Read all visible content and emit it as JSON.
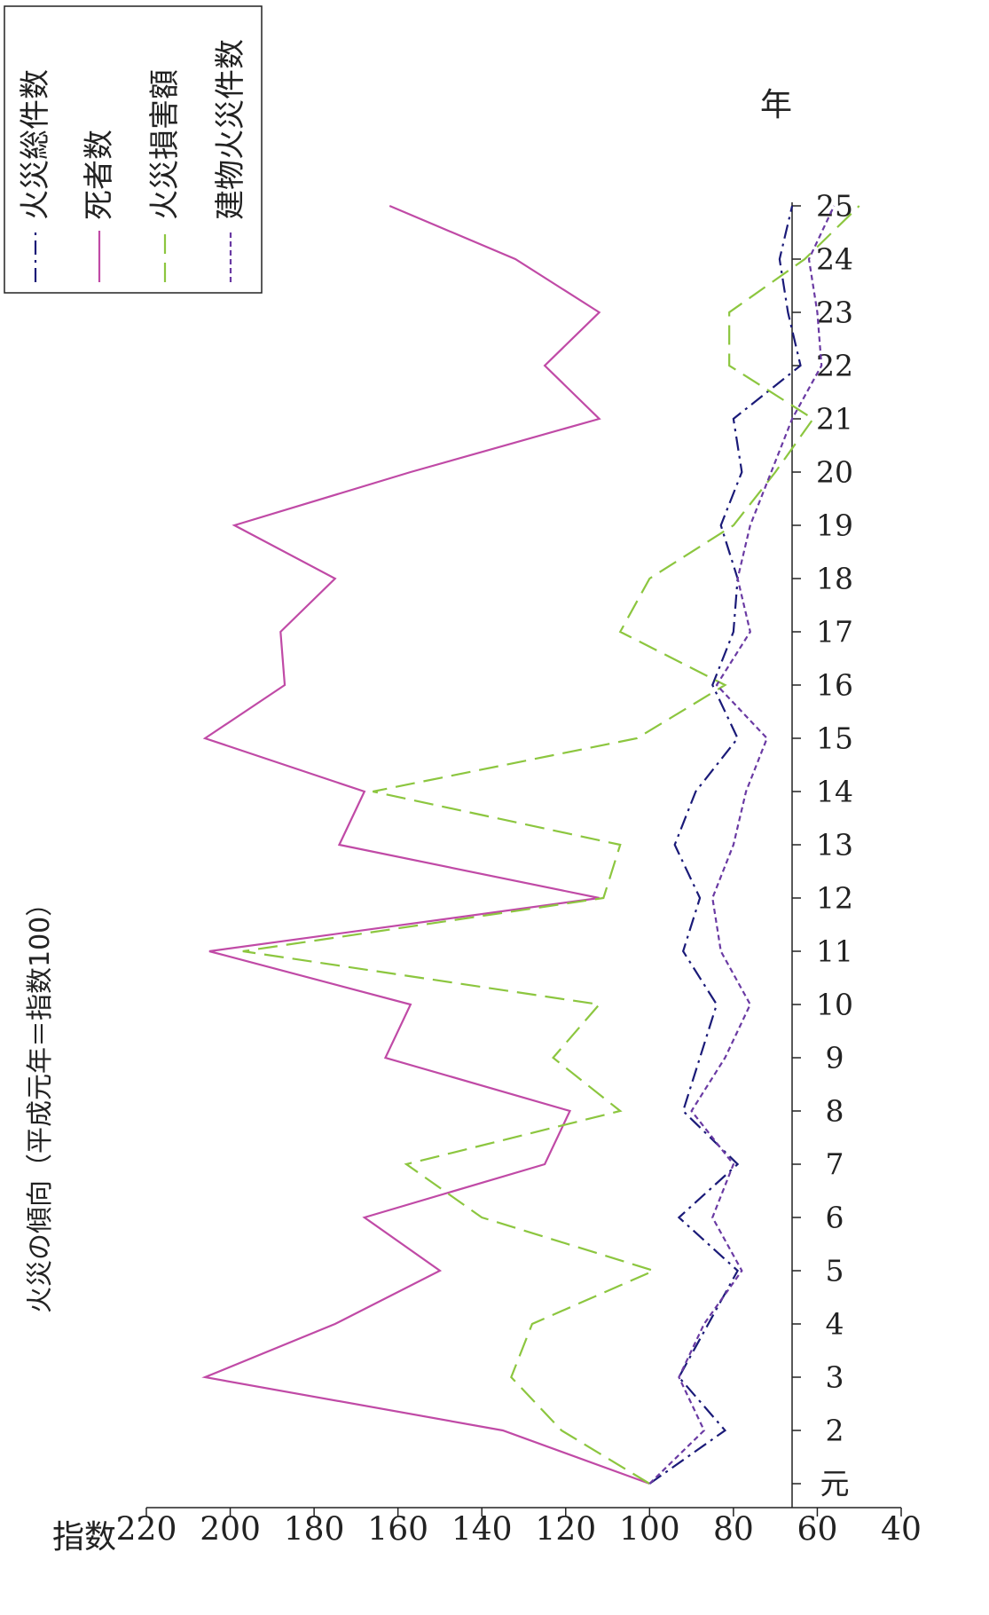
{
  "chart_data": {
    "type": "line",
    "title": "火災の傾向（平成元年＝指数100）",
    "ylabel": "指数",
    "xlabel": "年",
    "ylim": [
      40,
      220
    ],
    "yticks": [
      "40",
      "60",
      "80",
      "100",
      "120",
      "140",
      "160",
      "180",
      "200",
      "220"
    ],
    "categories": [
      "元",
      "2",
      "3",
      "4",
      "5",
      "6",
      "7",
      "8",
      "9",
      "10",
      "11",
      "12",
      "13",
      "14",
      "15",
      "16",
      "17",
      "18",
      "19",
      "20",
      "21",
      "22",
      "23",
      "24",
      "25"
    ],
    "legend_position": "top-right",
    "series": [
      {
        "name": "火災総件数",
        "style": "dashdot",
        "color": "#1a1a78",
        "values": [
          100,
          82,
          93,
          86,
          79,
          93,
          79,
          92,
          88,
          84,
          92,
          88,
          94,
          89,
          79,
          85,
          80,
          79,
          83,
          78,
          80,
          64,
          67,
          69,
          66
        ]
      },
      {
        "name": "死者数",
        "style": "solid",
        "color": "#c04aa6",
        "values": [
          100,
          135,
          206,
          175,
          150,
          168,
          125,
          119,
          163,
          157,
          205,
          112,
          174,
          168,
          206,
          187,
          188,
          175,
          199,
          157,
          112,
          125,
          112,
          132,
          162
        ]
      },
      {
        "name": "火災損害額",
        "style": "dashed",
        "color": "#8cc63f",
        "values": [
          100,
          121,
          133,
          128,
          99,
          140,
          158,
          107,
          123,
          112,
          197,
          111,
          107,
          166,
          103,
          82,
          107,
          100,
          80,
          70,
          61,
          81,
          81,
          63,
          50
        ]
      },
      {
        "name": "建物火災件数",
        "style": "dotted",
        "color": "#6a3aa3",
        "values": [
          100,
          87,
          93,
          87,
          78,
          85,
          80,
          90,
          82,
          76,
          83,
          85,
          80,
          77,
          72,
          84,
          76,
          79,
          76,
          71,
          66,
          59,
          60,
          62,
          56
        ]
      }
    ]
  }
}
